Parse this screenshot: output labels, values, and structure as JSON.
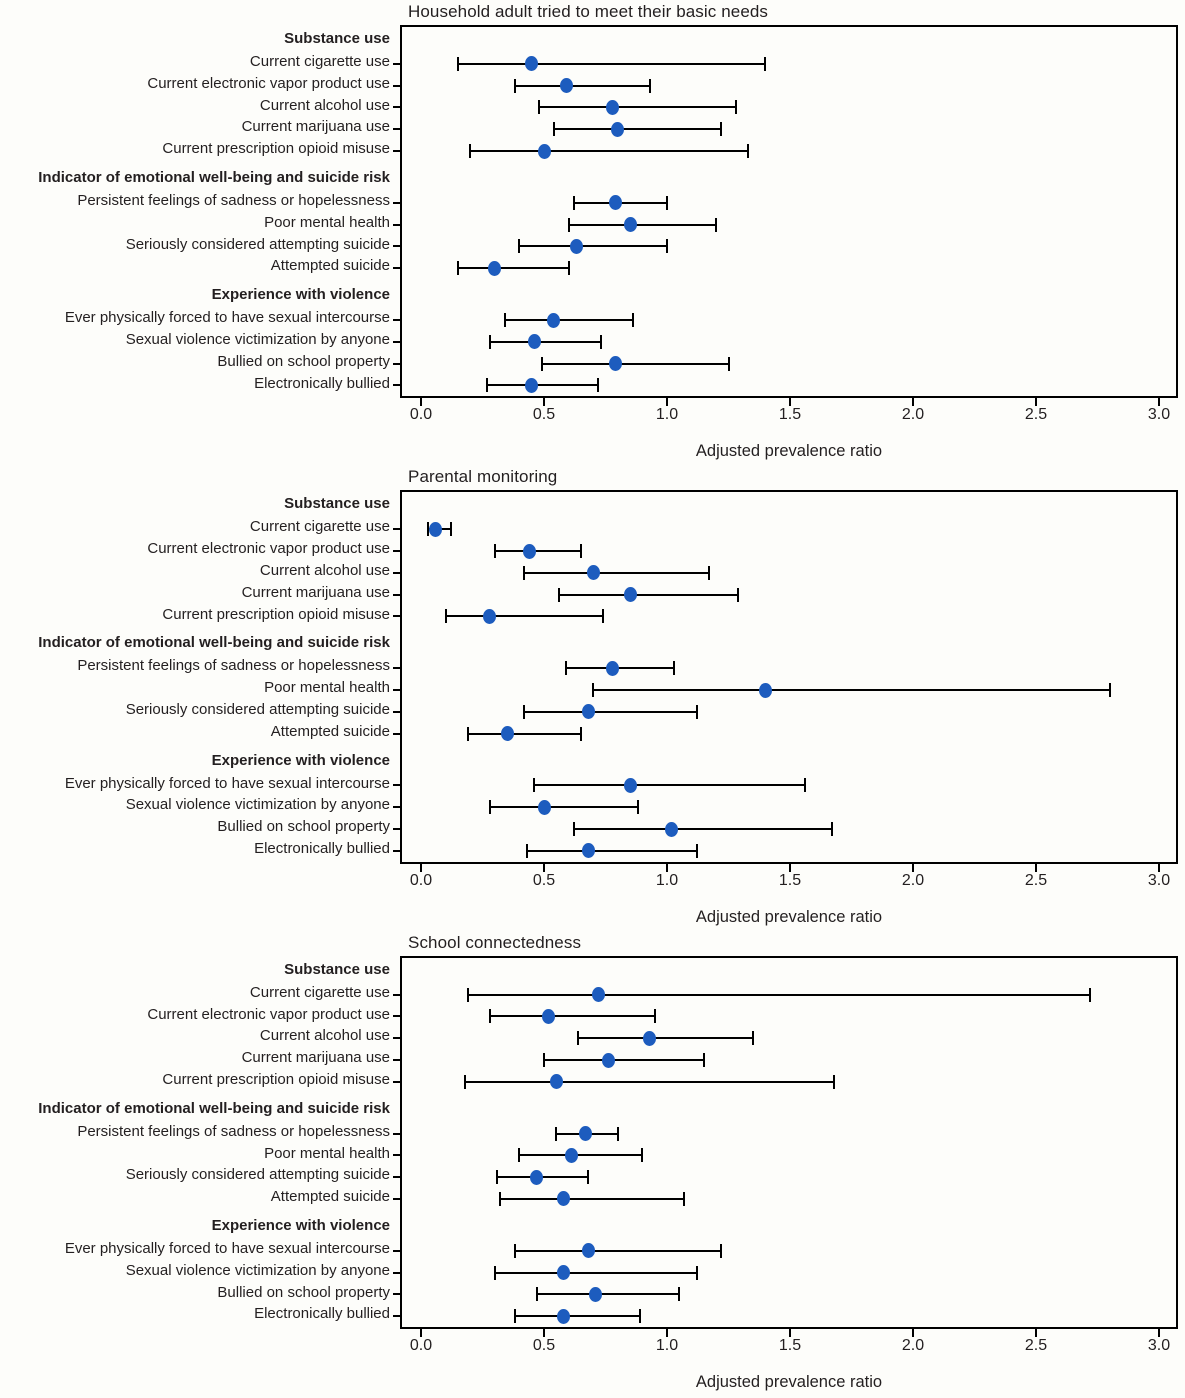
{
  "figure": {
    "background": "#fdfdfa",
    "point_color": "#1d5cbe",
    "line_color": "#000000",
    "axis": {
      "label": "Adjusted prevalence ratio",
      "min": 0,
      "max": 3,
      "tick_values": [
        0,
        0.5,
        1,
        1.5,
        2,
        2.5,
        3
      ],
      "tick_labels": [
        "0.0",
        "0.5",
        "1.0",
        "1.5",
        "2.0",
        "2.5",
        "3.0"
      ]
    }
  },
  "chart_data": [
    {
      "type": "scatter",
      "subtype": "forest-plot",
      "title": "Household adult tried to meet their basic needs",
      "xlabel": "Adjusted prevalence ratio",
      "xlim": [
        0,
        3
      ],
      "legend": "none",
      "grid": false,
      "groups": [
        {
          "header": "Substance use",
          "items": [
            {
              "label": "Current cigarette use",
              "estimate": 0.45,
              "ci_low": 0.15,
              "ci_high": 1.4
            },
            {
              "label": "Current electronic vapor product use",
              "estimate": 0.59,
              "ci_low": 0.38,
              "ci_high": 0.93
            },
            {
              "label": "Current alcohol use",
              "estimate": 0.78,
              "ci_low": 0.48,
              "ci_high": 1.28
            },
            {
              "label": "Current marijuana use",
              "estimate": 0.8,
              "ci_low": 0.54,
              "ci_high": 1.22
            },
            {
              "label": "Current prescription opioid misuse",
              "estimate": 0.5,
              "ci_low": 0.2,
              "ci_high": 1.33
            }
          ]
        },
        {
          "header": "Indicator of emotional well-being and suicide risk",
          "items": [
            {
              "label": "Persistent feelings of sadness or hopelessness",
              "estimate": 0.79,
              "ci_low": 0.62,
              "ci_high": 1.0
            },
            {
              "label": "Poor mental health",
              "estimate": 0.85,
              "ci_low": 0.6,
              "ci_high": 1.2
            },
            {
              "label": "Seriously considered attempting suicide",
              "estimate": 0.63,
              "ci_low": 0.4,
              "ci_high": 1.0
            },
            {
              "label": "Attempted suicide",
              "estimate": 0.3,
              "ci_low": 0.15,
              "ci_high": 0.6
            }
          ]
        },
        {
          "header": "Experience with violence",
          "items": [
            {
              "label": "Ever physically forced to have sexual intercourse",
              "estimate": 0.54,
              "ci_low": 0.34,
              "ci_high": 0.86
            },
            {
              "label": "Sexual violence victimization by anyone",
              "estimate": 0.46,
              "ci_low": 0.28,
              "ci_high": 0.73
            },
            {
              "label": "Bullied on school property",
              "estimate": 0.79,
              "ci_low": 0.49,
              "ci_high": 1.25
            },
            {
              "label": "Electronically bullied",
              "estimate": 0.45,
              "ci_low": 0.27,
              "ci_high": 0.72
            }
          ]
        }
      ]
    },
    {
      "type": "scatter",
      "subtype": "forest-plot",
      "title": "Parental monitoring",
      "xlabel": "Adjusted prevalence ratio",
      "xlim": [
        0,
        3
      ],
      "legend": "none",
      "grid": false,
      "groups": [
        {
          "header": "Substance use",
          "items": [
            {
              "label": "Current cigarette use",
              "estimate": 0.06,
              "ci_low": 0.03,
              "ci_high": 0.12
            },
            {
              "label": "Current electronic vapor product use",
              "estimate": 0.44,
              "ci_low": 0.3,
              "ci_high": 0.65
            },
            {
              "label": "Current alcohol use",
              "estimate": 0.7,
              "ci_low": 0.42,
              "ci_high": 1.17
            },
            {
              "label": "Current marijuana use",
              "estimate": 0.85,
              "ci_low": 0.56,
              "ci_high": 1.29
            },
            {
              "label": "Current prescription opioid misuse",
              "estimate": 0.28,
              "ci_low": 0.1,
              "ci_high": 0.74
            }
          ]
        },
        {
          "header": "Indicator of emotional well-being and suicide risk",
          "items": [
            {
              "label": "Persistent feelings of sadness or hopelessness",
              "estimate": 0.78,
              "ci_low": 0.59,
              "ci_high": 1.03
            },
            {
              "label": "Poor mental health",
              "estimate": 1.4,
              "ci_low": 0.7,
              "ci_high": 2.8
            },
            {
              "label": "Seriously considered attempting suicide",
              "estimate": 0.68,
              "ci_low": 0.42,
              "ci_high": 1.12
            },
            {
              "label": "Attempted suicide",
              "estimate": 0.35,
              "ci_low": 0.19,
              "ci_high": 0.65
            }
          ]
        },
        {
          "header": "Experience with violence",
          "items": [
            {
              "label": "Ever physically forced to have sexual intercourse",
              "estimate": 0.85,
              "ci_low": 0.46,
              "ci_high": 1.56
            },
            {
              "label": "Sexual violence victimization by anyone",
              "estimate": 0.5,
              "ci_low": 0.28,
              "ci_high": 0.88
            },
            {
              "label": "Bullied on school property",
              "estimate": 1.02,
              "ci_low": 0.62,
              "ci_high": 1.67
            },
            {
              "label": "Electronically bullied",
              "estimate": 0.68,
              "ci_low": 0.43,
              "ci_high": 1.12
            }
          ]
        }
      ]
    },
    {
      "type": "scatter",
      "subtype": "forest-plot",
      "title": "School connectedness",
      "xlabel": "Adjusted prevalence ratio",
      "xlim": [
        0,
        3
      ],
      "legend": "none",
      "grid": false,
      "groups": [
        {
          "header": "Substance use",
          "items": [
            {
              "label": "Current cigarette use",
              "estimate": 0.72,
              "ci_low": 0.19,
              "ci_high": 2.72
            },
            {
              "label": "Current electronic vapor product use",
              "estimate": 0.52,
              "ci_low": 0.28,
              "ci_high": 0.95
            },
            {
              "label": "Current alcohol use",
              "estimate": 0.93,
              "ci_low": 0.64,
              "ci_high": 1.35
            },
            {
              "label": "Current marijuana use",
              "estimate": 0.76,
              "ci_low": 0.5,
              "ci_high": 1.15
            },
            {
              "label": "Current prescription opioid misuse",
              "estimate": 0.55,
              "ci_low": 0.18,
              "ci_high": 1.68
            }
          ]
        },
        {
          "header": "Indicator of emotional well-being and suicide risk",
          "items": [
            {
              "label": "Persistent feelings of sadness or hopelessness",
              "estimate": 0.67,
              "ci_low": 0.55,
              "ci_high": 0.8
            },
            {
              "label": "Poor mental health",
              "estimate": 0.61,
              "ci_low": 0.4,
              "ci_high": 0.9
            },
            {
              "label": "Seriously considered attempting suicide",
              "estimate": 0.47,
              "ci_low": 0.31,
              "ci_high": 0.68
            },
            {
              "label": "Attempted suicide",
              "estimate": 0.58,
              "ci_low": 0.32,
              "ci_high": 1.07
            }
          ]
        },
        {
          "header": "Experience with violence",
          "items": [
            {
              "label": "Ever physically forced to have sexual intercourse",
              "estimate": 0.68,
              "ci_low": 0.38,
              "ci_high": 1.22
            },
            {
              "label": "Sexual violence victimization by anyone",
              "estimate": 0.58,
              "ci_low": 0.3,
              "ci_high": 1.12
            },
            {
              "label": "Bullied on school property",
              "estimate": 0.71,
              "ci_low": 0.47,
              "ci_high": 1.05
            },
            {
              "label": "Electronically bullied",
              "estimate": 0.58,
              "ci_low": 0.38,
              "ci_high": 0.89
            }
          ]
        }
      ]
    }
  ]
}
